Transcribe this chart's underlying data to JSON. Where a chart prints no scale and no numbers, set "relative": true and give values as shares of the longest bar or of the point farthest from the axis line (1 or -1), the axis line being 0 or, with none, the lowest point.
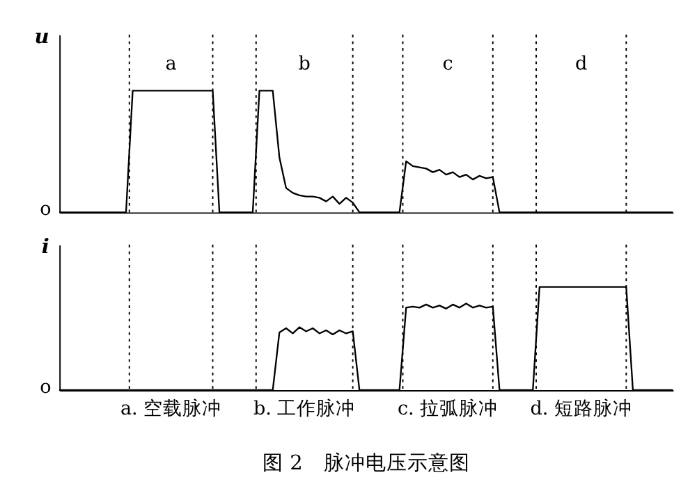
{
  "chart_data": [
    {
      "type": "line",
      "relative": true,
      "ylabel": "u",
      "grid": "x",
      "categories": [
        null,
        null,
        null,
        null,
        null,
        null,
        null,
        null,
        null,
        null,
        null,
        null,
        null,
        null,
        null,
        null,
        null,
        null,
        null,
        null,
        null,
        null,
        null,
        null,
        null,
        null,
        null,
        null,
        null,
        null,
        null,
        null,
        null,
        null,
        null,
        null,
        null,
        null,
        null,
        null,
        null,
        null,
        null,
        null,
        null,
        null,
        null,
        null,
        null,
        null,
        null,
        null,
        null,
        null,
        null,
        null,
        null,
        null,
        null,
        null,
        null,
        null,
        null,
        null,
        null,
        null,
        null,
        null,
        null,
        null,
        null,
        null,
        null,
        null,
        null,
        null,
        null,
        null,
        null,
        null,
        null,
        null,
        null,
        null,
        null,
        null,
        null,
        null,
        null,
        null,
        null,
        null,
        null
      ],
      "series": [
        {
          "color": "#000000",
          "values": [
            0,
            0,
            0,
            0,
            0,
            0,
            0,
            0,
            0,
            0,
            0,
            1,
            1,
            1,
            1,
            1,
            1,
            1,
            1,
            1,
            1,
            1,
            1,
            1,
            0,
            0,
            0,
            0,
            0,
            0,
            1,
            1,
            1,
            0.45,
            0.2,
            0.16,
            0.14,
            0.13,
            0.13,
            0.12,
            0.09,
            0.13,
            0.07,
            0.12,
            0.08,
            0,
            0,
            0,
            0,
            0,
            0,
            0,
            0.42,
            0.38,
            0.37,
            0.36,
            0.33,
            0.35,
            0.31,
            0.33,
            0.29,
            0.31,
            0.27,
            0.3,
            0.28,
            0.29,
            0,
            0,
            0,
            0,
            0,
            0,
            0,
            0,
            0,
            0,
            0,
            0,
            0,
            0,
            0,
            0,
            0,
            0,
            0,
            0,
            0,
            0,
            0,
            0,
            0,
            0,
            0
          ]
        }
      ],
      "annotations": [
        "a",
        "b",
        "c",
        "d",
        "o"
      ]
    },
    {
      "type": "line",
      "relative": true,
      "ylabel": "i",
      "grid": "x",
      "title": "图 2　脉冲电压示意图",
      "categories": [
        null,
        null,
        null,
        null,
        null,
        null,
        null,
        null,
        null,
        null,
        null,
        null,
        null,
        null,
        null,
        null,
        null,
        null,
        null,
        null,
        null,
        null,
        null,
        null,
        null,
        null,
        null,
        null,
        null,
        null,
        null,
        null,
        null,
        null,
        null,
        null,
        null,
        null,
        null,
        null,
        null,
        null,
        null,
        null,
        null,
        null,
        null,
        null,
        null,
        null,
        null,
        null,
        null,
        null,
        null,
        null,
        null,
        null,
        null,
        null,
        null,
        null,
        null,
        null,
        null,
        null,
        null,
        null,
        null,
        null,
        null,
        null,
        null,
        null,
        null,
        null,
        null,
        null,
        null,
        null,
        null,
        null,
        null,
        null,
        null,
        null,
        null,
        null,
        null,
        null,
        null,
        null,
        null
      ],
      "series": [
        {
          "color": "#000000",
          "values": [
            0,
            0,
            0,
            0,
            0,
            0,
            0,
            0,
            0,
            0,
            0,
            0,
            0,
            0,
            0,
            0,
            0,
            0,
            0,
            0,
            0,
            0,
            0,
            0,
            0,
            0,
            0,
            0,
            0,
            0,
            0,
            0,
            0,
            0.56,
            0.6,
            0.55,
            0.61,
            0.57,
            0.6,
            0.55,
            0.58,
            0.54,
            0.58,
            0.55,
            0.57,
            0,
            0,
            0,
            0,
            0,
            0,
            0,
            0.8,
            0.81,
            0.8,
            0.83,
            0.8,
            0.82,
            0.79,
            0.83,
            0.8,
            0.84,
            0.8,
            0.82,
            0.8,
            0.81,
            0,
            0,
            0,
            0,
            0,
            0,
            1,
            1,
            1,
            1,
            1,
            1,
            1,
            1,
            1,
            1,
            1,
            1,
            1,
            1,
            0,
            0,
            0,
            0,
            0,
            0,
            0
          ]
        }
      ],
      "annotations": [
        "a. 空载脉冲",
        "b. 工作脉冲",
        "c. 拉弧脉冲",
        "d. 短路脉冲",
        "o"
      ]
    }
  ]
}
